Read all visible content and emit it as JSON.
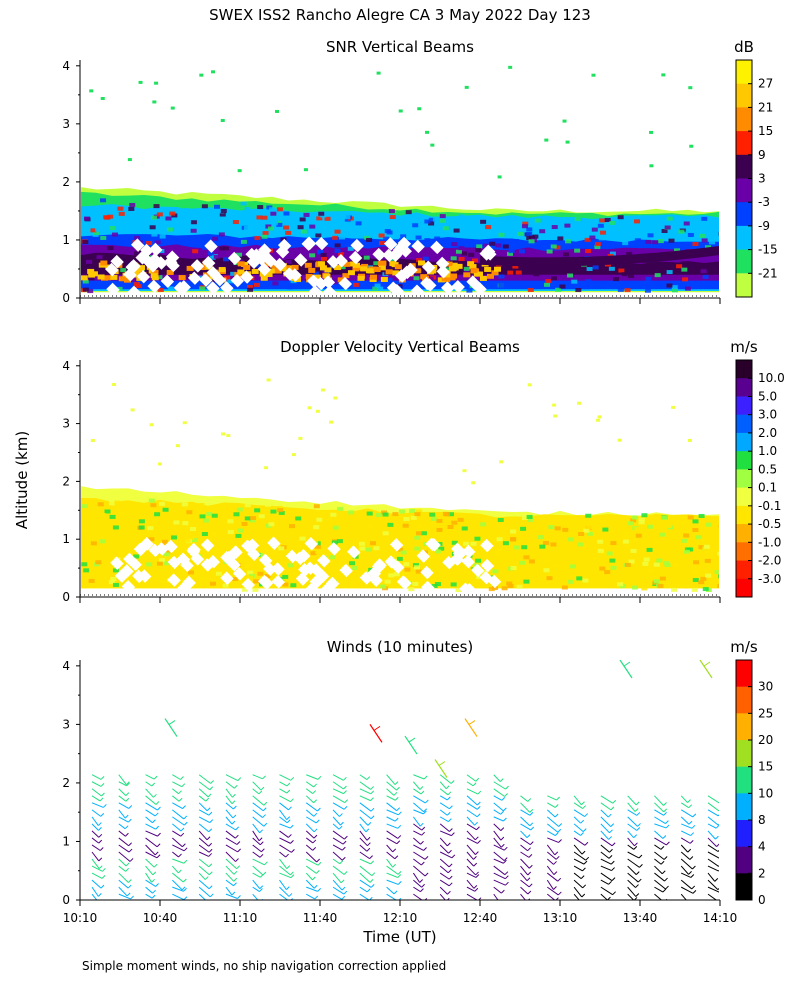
{
  "figure": {
    "title": "SWEX ISS2 Rancho Alegre CA   3 May 2022 Day 123",
    "ylabel": "Altitude (km)",
    "xlabel": "Time (UT)",
    "footnote": "Simple moment winds, no ship navigation correction applied"
  },
  "chart_data": [
    {
      "type": "heatmap",
      "title": "SNR Vertical Beams",
      "x_ticks": [
        "10:10",
        "10:40",
        "11:10",
        "11:40",
        "12:10",
        "12:40",
        "13:10",
        "13:40",
        "14:10"
      ],
      "y_ticks": [
        "0",
        "1",
        "2",
        "3",
        "4"
      ],
      "ylim": [
        0,
        4.1
      ],
      "colorbar": {
        "unit": "dB",
        "labels": [
          "27",
          "21",
          "15",
          "9",
          "3",
          "-3",
          "-9",
          "-15",
          "-21"
        ],
        "colors": [
          "#fff200",
          "#ffc800",
          "#ff8c00",
          "#ff2000",
          "#3c0050",
          "#6a00a8",
          "#0040ff",
          "#00c0ff",
          "#20e060",
          "#c0ff40"
        ]
      }
    },
    {
      "type": "heatmap",
      "title": "Doppler Velocity Vertical Beams",
      "x_ticks": [
        "10:10",
        "10:40",
        "11:10",
        "11:40",
        "12:10",
        "12:40",
        "13:10",
        "13:40",
        "14:10"
      ],
      "y_ticks": [
        "0",
        "1",
        "2",
        "3",
        "4"
      ],
      "ylim": [
        0,
        4.1
      ],
      "colorbar": {
        "unit": "m/s",
        "labels": [
          "10.0",
          "5.0",
          "3.0",
          "2.0",
          "1.0",
          "0.5",
          "0.1",
          "-0.1",
          "-0.5",
          "-1.0",
          "-2.0",
          "-3.0"
        ],
        "colors": [
          "#28002a",
          "#5a0090",
          "#3c20ff",
          "#0060ff",
          "#00a8ff",
          "#20e040",
          "#a0ff40",
          "#f0ff40",
          "#ffe600",
          "#ffb000",
          "#ff7000",
          "#ff2000",
          "#ff0000"
        ]
      }
    },
    {
      "type": "scatter",
      "title": "Winds (10 minutes)",
      "x_ticks": [
        "10:10",
        "10:40",
        "11:10",
        "11:40",
        "12:10",
        "12:40",
        "13:10",
        "13:40",
        "14:10"
      ],
      "y_ticks": [
        "0",
        "1",
        "2",
        "3",
        "4"
      ],
      "ylim": [
        0,
        4.1
      ],
      "colorbar": {
        "unit": "m/s",
        "labels": [
          "30",
          "25",
          "20",
          "15",
          "10",
          "8",
          "4",
          "2",
          "0"
        ],
        "colors": [
          "#ff0000",
          "#ff6000",
          "#ffb000",
          "#a0e020",
          "#20e080",
          "#00b0ff",
          "#2020ff",
          "#500080",
          "#000000"
        ]
      }
    }
  ]
}
